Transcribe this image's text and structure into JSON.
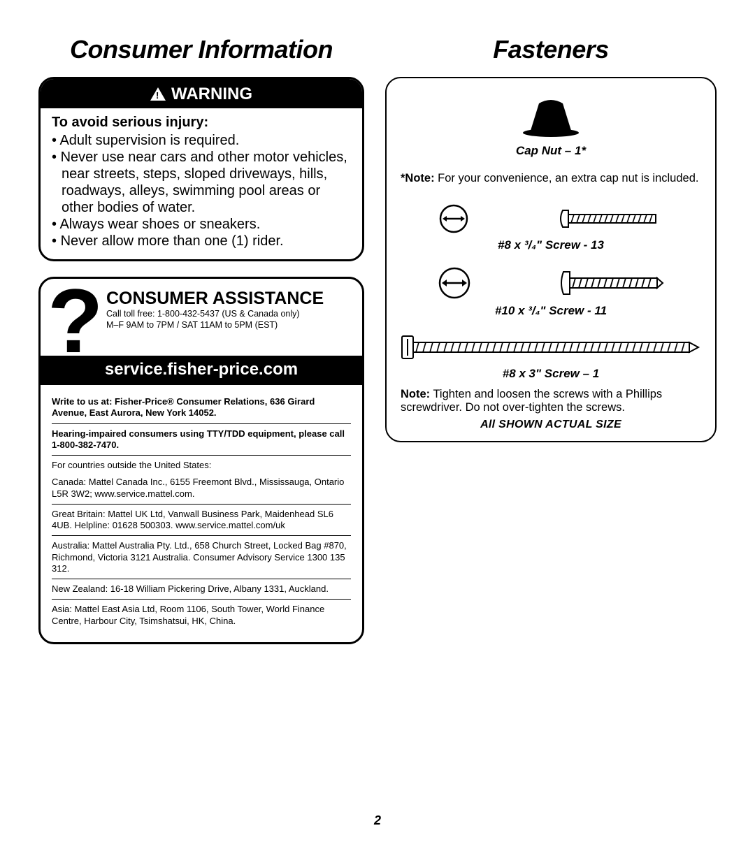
{
  "page_number": "2",
  "left": {
    "title": "Consumer Information",
    "warning": {
      "header": "WARNING",
      "sub": "To avoid serious injury:",
      "items": [
        "Adult supervision is required.",
        "Never use near cars and other motor vehicles, near streets, steps, sloped driveways, hills, roadways, alleys, swimming pool areas or other bodies of water.",
        "Always wear shoes or sneakers.",
        "Never allow more than one (1) rider."
      ]
    },
    "assistance": {
      "heading": "CONSUMER ASSISTANCE",
      "phone_line1": "Call toll free: 1-800-432-5437 (US & Canada only)",
      "phone_line2": "M–F 9AM to 7PM / SAT 11AM to 5PM (EST)",
      "url": "service.fisher-price.com",
      "write": "Write to us at: Fisher-Price® Consumer Relations, 636 Girard Avenue, East Aurora, New York 14052.",
      "tty": "Hearing-impaired consumers using TTY/TDD equipment, please call 1-800-382-7470.",
      "outside_label": "For countries outside the United States:",
      "countries": [
        "Canada: Mattel Canada Inc., 6155 Freemont Blvd., Mississauga, Ontario L5R 3W2; www.service.mattel.com.",
        "Great Britain: Mattel UK Ltd, Vanwall Business Park, Maidenhead SL6 4UB. Helpline: 01628 500303. www.service.mattel.com/uk",
        "Australia: Mattel Australia Pty. Ltd., 658 Church Street, Locked Bag #870, Richmond, Victoria 3121 Australia. Consumer Advisory Service 1300 135 312.",
        "New Zealand: 16-18 William Pickering Drive, Albany 1331, Auckland.",
        "Asia: Mattel East Asia Ltd, Room 1106, South Tower, World Finance Centre, Harbour City, Tsimshatsui, HK, China."
      ]
    }
  },
  "right": {
    "title": "Fasteners",
    "cap_nut_label": "Cap Nut – 1*",
    "note1_bold": "*Note:",
    "note1_rest": " For your convenience, an extra cap nut is included.",
    "screw1_label": "#8 x ³/₄\" Screw - 13",
    "screw2_label": "#10 x ³/₄\" Screw - 11",
    "screw3_label": "#8 x 3\" Screw  – 1",
    "note2_bold": "Note:",
    "note2_rest": " Tighten and loosen the screws with a Phillips screwdriver. Do not over-tighten the screws.",
    "actual_size_prefix": "All ",
    "actual_size_caps": "SHOWN ACTUAL SIZE"
  }
}
